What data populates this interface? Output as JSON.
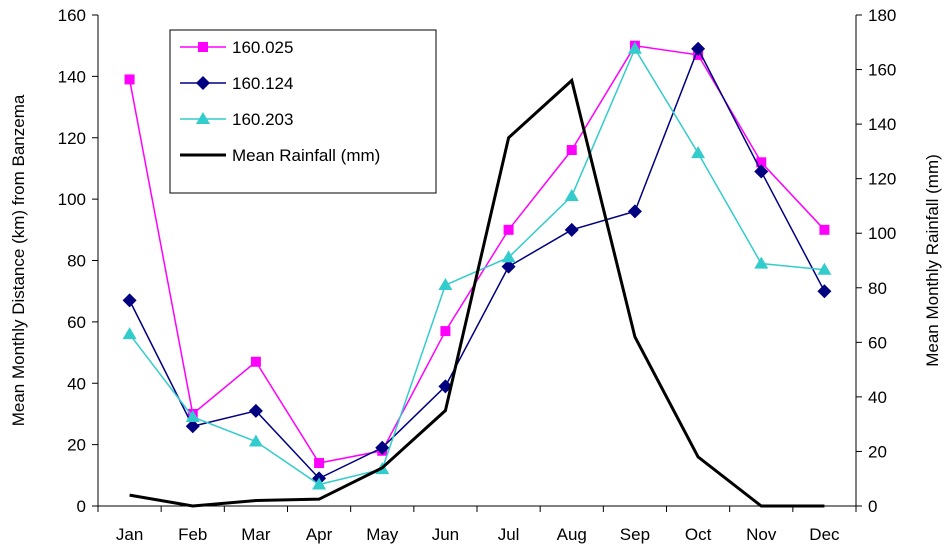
{
  "chart_data": {
    "type": "line",
    "categories": [
      "Jan",
      "Feb",
      "Mar",
      "Apr",
      "May",
      "Jun",
      "Jul",
      "Aug",
      "Sep",
      "Oct",
      "Nov",
      "Dec"
    ],
    "ylabel": "Mean Monthly Distance (km) from Banzema",
    "ylabel_right": "Mean Monthly Rainfall (mm)",
    "ylim": [
      0,
      160
    ],
    "ylim_right": [
      0,
      180
    ],
    "yticks": [
      "0",
      "20",
      "40",
      "60",
      "80",
      "100",
      "120",
      "140",
      "160"
    ],
    "yticks_right": [
      "0",
      "20",
      "40",
      "60",
      "80",
      "100",
      "120",
      "140",
      "160",
      "180"
    ],
    "grid": false,
    "legend_position": "top-left",
    "series": [
      {
        "name": "160.025",
        "axis": "left",
        "marker": "square",
        "color": "#ff00ff",
        "values": [
          139,
          30,
          47,
          14,
          18,
          57,
          90,
          116,
          150,
          147,
          112,
          90
        ]
      },
      {
        "name": "160.124",
        "axis": "left",
        "marker": "diamond",
        "color": "#000080",
        "values": [
          67,
          26,
          31,
          9,
          19,
          39,
          78,
          90,
          96,
          149,
          109,
          70
        ]
      },
      {
        "name": "160.203",
        "axis": "left",
        "marker": "triangle",
        "color": "#33cccc",
        "values": [
          56,
          29,
          21,
          7,
          12,
          72,
          81,
          101,
          149,
          115,
          79,
          77
        ]
      },
      {
        "name": "Mean Rainfall (mm)",
        "axis": "right",
        "marker": "none",
        "color": "#000000",
        "values": [
          4,
          0,
          2,
          2.5,
          14,
          35,
          135,
          156,
          62,
          18,
          0,
          0
        ]
      }
    ]
  }
}
